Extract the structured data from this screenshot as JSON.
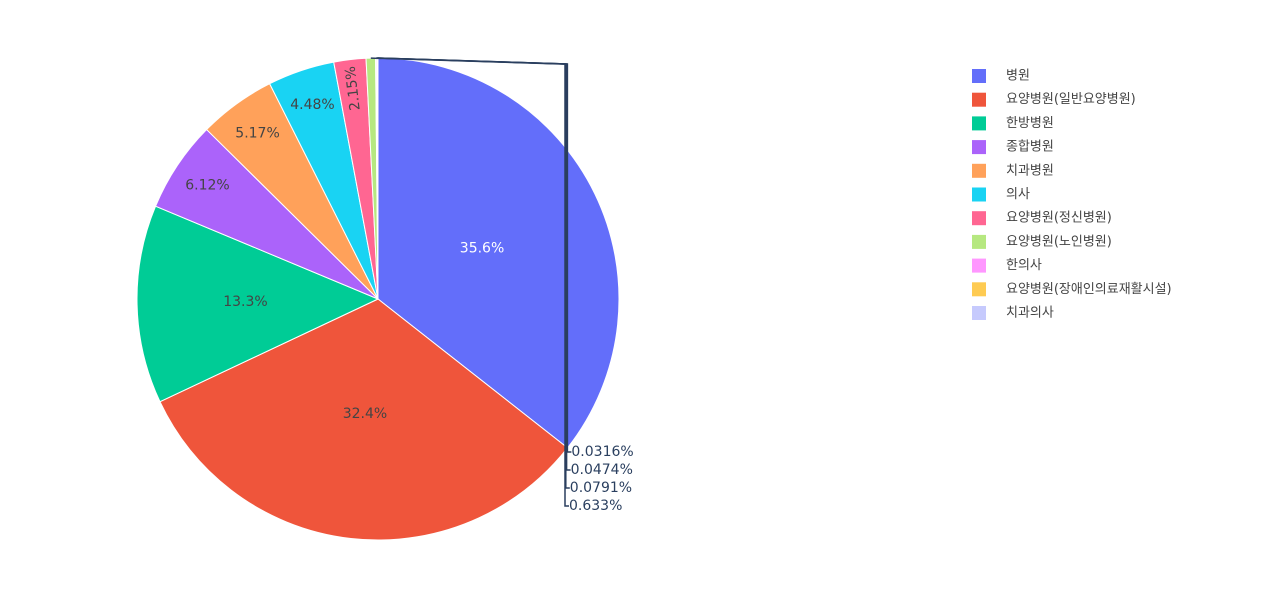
{
  "chart_data": {
    "type": "pie",
    "title": "",
    "legend_position": "top-right",
    "slices": [
      {
        "label": "병원",
        "percent": 35.6,
        "percent_label": "35.6%",
        "color": "#636efa",
        "text_color": "#ffffff",
        "label_mode": "inside"
      },
      {
        "label": "요양병원(일반요양병원)",
        "percent": 32.4,
        "percent_label": "32.4%",
        "color": "#ef553b",
        "text_color": "#444444",
        "label_mode": "inside"
      },
      {
        "label": "한방병원",
        "percent": 13.3,
        "percent_label": "13.3%",
        "color": "#00cc96",
        "text_color": "#444444",
        "label_mode": "inside"
      },
      {
        "label": "종합병원",
        "percent": 6.12,
        "percent_label": "6.12%",
        "color": "#ab63fa",
        "text_color": "#444444",
        "label_mode": "inside"
      },
      {
        "label": "치과병원",
        "percent": 5.17,
        "percent_label": "5.17%",
        "color": "#ffa15a",
        "text_color": "#444444",
        "label_mode": "inside"
      },
      {
        "label": "의사",
        "percent": 4.48,
        "percent_label": "4.48%",
        "color": "#19d3f3",
        "text_color": "#444444",
        "label_mode": "inside"
      },
      {
        "label": "요양병원(정신병원)",
        "percent": 2.15,
        "percent_label": "2.15%",
        "color": "#ff6692",
        "text_color": "#444444",
        "label_mode": "inside-rotated"
      },
      {
        "label": "요양병원(노인병원)",
        "percent": 0.633,
        "percent_label": "0.633%",
        "color": "#b6e880",
        "text_color": "#2a3f5f",
        "label_mode": "outside"
      },
      {
        "label": "한의사",
        "percent": 0.0791,
        "percent_label": "0.0791%",
        "color": "#ff97ff",
        "text_color": "#2a3f5f",
        "label_mode": "outside"
      },
      {
        "label": "요양병원(장애인의료재활시설)",
        "percent": 0.0474,
        "percent_label": "0.0474%",
        "color": "#fecb52",
        "text_color": "#2a3f5f",
        "label_mode": "outside"
      },
      {
        "label": "치과의사",
        "percent": 0.0316,
        "percent_label": "0.0316%",
        "color": "#c6cafd",
        "text_color": "#2a3f5f",
        "label_mode": "outside"
      }
    ]
  }
}
